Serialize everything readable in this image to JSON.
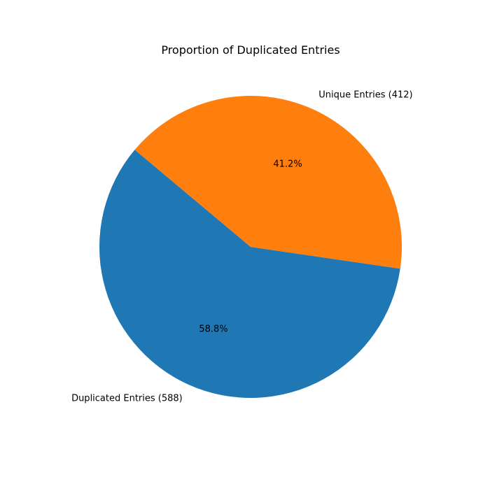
{
  "chart_data": {
    "type": "pie",
    "title": "Proportion of Duplicated Entries",
    "labels": [
      "Duplicated Entries (588)",
      "Unique Entries (412)"
    ],
    "values": [
      588,
      412
    ],
    "percent_labels": [
      "58.8%",
      "41.2%"
    ],
    "colors": [
      "#1f77b4",
      "#ff7f0e"
    ],
    "start_angle_deg": 140,
    "direction": "counterclockwise",
    "legend": "none"
  }
}
